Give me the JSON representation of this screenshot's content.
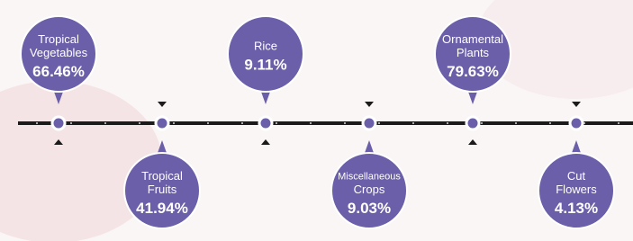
{
  "items": [
    {
      "label": [
        "Tropical",
        "Vegetables"
      ],
      "value": "66.46%"
    },
    {
      "label": [
        "Tropical",
        "Fruits"
      ],
      "value": "41.94%"
    },
    {
      "label": [
        "Rice"
      ],
      "value": "9.11%"
    },
    {
      "label": [
        "Miscellaneous",
        "Crops"
      ],
      "value": "9.03%"
    },
    {
      "label": [
        "Ornamental",
        "Plants"
      ],
      "value": "79.63%"
    },
    {
      "label": [
        "Cut",
        "Flowers"
      ],
      "value": "4.13%"
    }
  ]
}
